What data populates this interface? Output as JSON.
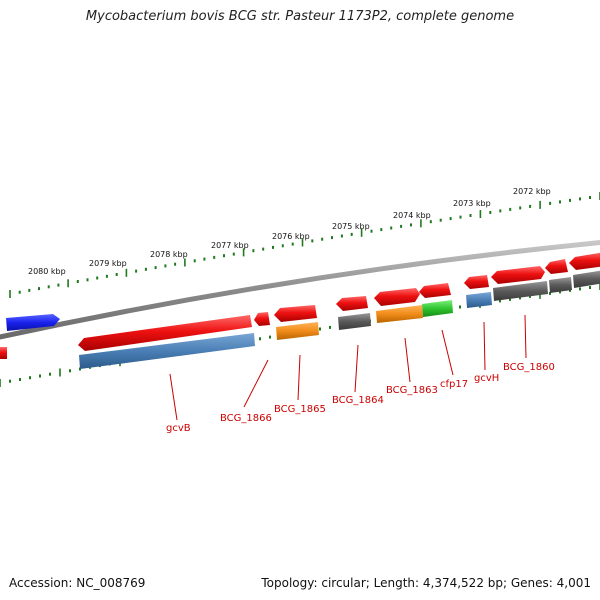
{
  "title": "Mycobacterium bovis BCG str. Pasteur 1173P2, complete genome",
  "accession_label": "Accession: NC_008769",
  "summary_label": "Topology: circular; Length: 4,374,522 bp; Genes: 4,001",
  "colors": {
    "cds": "#ee1111",
    "rna": "#2233ee",
    "blue_feature": "#4a7fb5",
    "orange_feature": "#f08c1a",
    "green_feature": "#2fc42f",
    "gray_feature": "#5a5a5a",
    "backbone": "#8a8a8a",
    "ticks": "#1f7a1f",
    "gene_label": "#cc0000"
  },
  "kbp_labels": [
    "2080 kbp",
    "2079 kbp",
    "2078 kbp",
    "2077 kbp",
    "2076 kbp",
    "2075 kbp",
    "2074 kbp",
    "2073 kbp",
    "2072 kbp"
  ],
  "gene_labels": [
    "gcvB",
    "BCG_1866",
    "BCG_1865",
    "BCG_1864",
    "BCG_1863",
    "cfp17",
    "gcvH",
    "BCG_1860"
  ]
}
